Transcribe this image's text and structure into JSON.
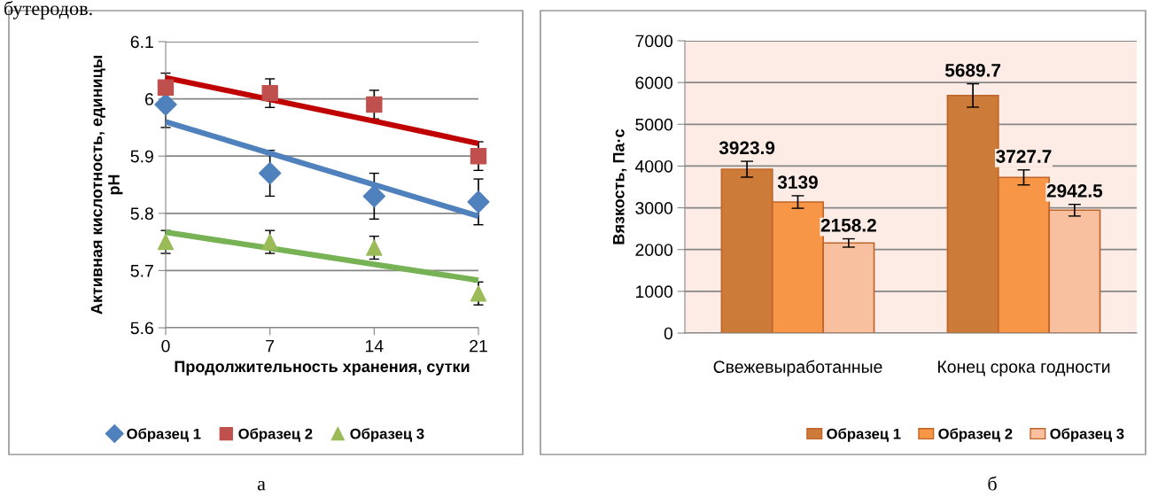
{
  "chart_data": [
    {
      "type": "scatter",
      "xlabel": "Продолжительность хранения, сутки",
      "ylabel": "Активная кислотность, единицы\npH",
      "x": [
        0,
        7,
        14,
        21
      ],
      "xlim": [
        0,
        21
      ],
      "xticks": [
        0,
        7,
        14,
        21
      ],
      "ylim": [
        5.6,
        6.1
      ],
      "yticks": [
        5.6,
        5.7,
        5.8,
        5.9,
        6,
        6.1
      ],
      "grid": "y",
      "legend": "bottom",
      "series": [
        {
          "name": "Образец 1",
          "color": "#4f81bd",
          "marker": "diamond",
          "values": [
            5.99,
            5.87,
            5.83,
            5.82
          ],
          "errors": [
            0.04,
            0.04,
            0.04,
            0.04
          ]
        },
        {
          "name": "Образец 2",
          "color": "#c0504d",
          "marker": "square",
          "values": [
            6.02,
            6.01,
            5.99,
            5.9
          ],
          "errors": [
            0.025,
            0.025,
            0.025,
            0.025
          ]
        },
        {
          "name": "Образец 3",
          "color": "#9bbb59",
          "marker": "triangle",
          "values": [
            5.75,
            5.75,
            5.74,
            5.66
          ],
          "errors": [
            0.02,
            0.02,
            0.02,
            0.02
          ]
        },
        {
          "type": "line",
          "color": "#4f81bd",
          "values": [
            5.96,
            5.905,
            5.85,
            5.795
          ]
        },
        {
          "type": "line",
          "color": "#c00000",
          "values": [
            6.037,
            5.999,
            5.961,
            5.922
          ]
        },
        {
          "type": "line",
          "color": "#77b255",
          "values": [
            5.767,
            5.739,
            5.711,
            5.683
          ]
        }
      ],
      "annotations": [
        "бутеродов.",
        "а"
      ]
    },
    {
      "type": "bar",
      "ylabel": "Вязкость, Па·с",
      "categories": [
        "Свежевыработанные",
        "Конец срока годности"
      ],
      "ylim": [
        0,
        7000
      ],
      "yticks": [
        0,
        1000,
        2000,
        3000,
        4000,
        5000,
        6000,
        7000
      ],
      "grid": "y",
      "legend": "bottom",
      "data_labels": true,
      "series": [
        {
          "name": "Образец 1",
          "color": "#cd7b38",
          "values": [
            3923.9,
            5689.7
          ],
          "errors": [
            190,
            280
          ]
        },
        {
          "name": "Образец 2",
          "color": "#f79646",
          "values": [
            3139,
            3727.7
          ],
          "errors": [
            150,
            180
          ]
        },
        {
          "name": "Образец 3",
          "color": "#f9c0a0",
          "values": [
            2158.2,
            2942.5
          ],
          "errors": [
            100,
            140
          ]
        }
      ],
      "annotations": [
        "б"
      ]
    }
  ]
}
